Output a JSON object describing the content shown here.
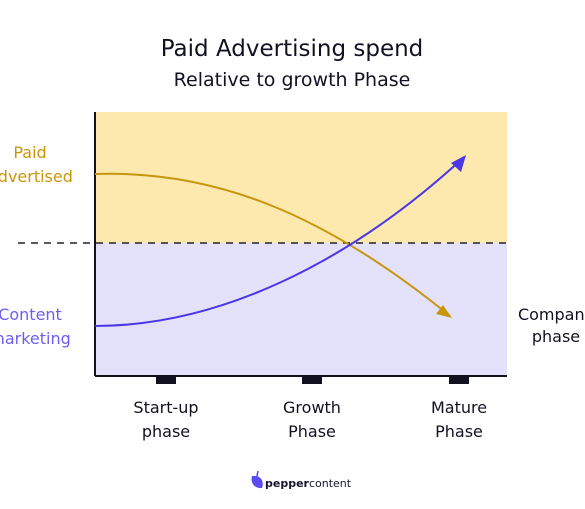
{
  "chart_data": {
    "type": "line",
    "title": "Paid Advertising spend",
    "subtitle": "Relative to growth Phase",
    "categories": [
      "Start-up phase",
      "Growth Phase",
      "Mature Phase"
    ],
    "category_lines": [
      [
        "Start-up",
        "phase"
      ],
      [
        "Growth",
        "Phase"
      ],
      [
        "Mature",
        "Phase"
      ]
    ],
    "xlabel_lines": [
      "Company",
      "phase"
    ],
    "zones": [
      {
        "lines": [
          "Paid",
          "Advertised"
        ],
        "color": "#c8960c",
        "fill": "#fde8ae"
      },
      {
        "lines": [
          "Content",
          "marketing"
        ],
        "color": "#6b5ff0",
        "fill": "#e4e1fb"
      }
    ],
    "series": [
      {
        "color": "#c8960c",
        "trend": "decreasing"
      },
      {
        "color": "#4a37e8",
        "trend": "increasing"
      }
    ],
    "threshold_line": "dashed",
    "grid": false,
    "legend": "none"
  },
  "branding": {
    "logo_text": "peppercontent",
    "logo_word_1": "pepper",
    "logo_word_2": "content"
  }
}
